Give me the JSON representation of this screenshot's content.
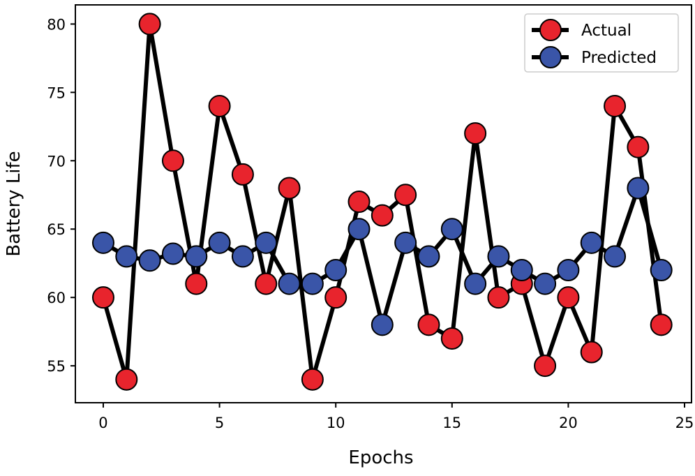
{
  "chart_data": {
    "type": "line",
    "title": "",
    "xlabel": "Epochs",
    "ylabel": "Battery Life",
    "xlim": [
      -1.2,
      25.3
    ],
    "ylim": [
      52.3,
      81.4
    ],
    "xticks": [
      0,
      5,
      10,
      15,
      20,
      25
    ],
    "yticks": [
      55,
      60,
      65,
      70,
      75,
      80
    ],
    "grid": false,
    "legend_position": "top-right",
    "x": [
      0,
      1,
      2,
      3,
      4,
      5,
      6,
      7,
      8,
      9,
      10,
      11,
      12,
      13,
      14,
      15,
      16,
      17,
      18,
      19,
      20,
      21,
      22,
      23,
      24
    ],
    "series": [
      {
        "name": "Actual",
        "color": "#e8242d",
        "line_color": "#000000",
        "values": [
          60,
          54,
          80,
          70,
          61,
          74,
          69,
          61,
          68,
          54,
          60,
          67,
          66,
          67.5,
          58,
          57,
          72,
          60,
          61,
          55,
          60,
          56,
          74,
          71,
          58
        ]
      },
      {
        "name": "Predicted",
        "color": "#3a55a8",
        "line_color": "#000000",
        "values": [
          64,
          63,
          62.7,
          63.2,
          63,
          64,
          63,
          64,
          61,
          61,
          62,
          65,
          58,
          64,
          63,
          65,
          61,
          63,
          62,
          61,
          62,
          64,
          63,
          68,
          62
        ]
      }
    ]
  }
}
